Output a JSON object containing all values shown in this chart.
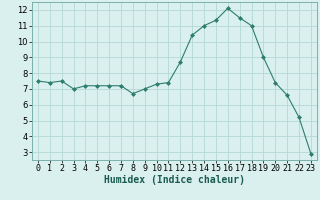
{
  "x": [
    0,
    1,
    2,
    3,
    4,
    5,
    6,
    7,
    8,
    9,
    10,
    11,
    12,
    13,
    14,
    15,
    16,
    17,
    18,
    19,
    20,
    21,
    22,
    23
  ],
  "y": [
    7.5,
    7.4,
    7.5,
    7.0,
    7.2,
    7.2,
    7.2,
    7.2,
    6.7,
    7.0,
    7.3,
    7.4,
    8.7,
    10.4,
    11.0,
    11.35,
    12.1,
    11.5,
    11.0,
    9.0,
    7.4,
    6.6,
    5.2,
    2.9
  ],
  "line_color": "#2e7d6e",
  "marker": "D",
  "marker_size": 2.0,
  "bg_color": "#d9f0ee",
  "grid_color": "#b5d9d5",
  "xlabel": "Humidex (Indice chaleur)",
  "xlabel_fontsize": 7,
  "tick_fontsize": 6,
  "xlim": [
    -0.5,
    23.5
  ],
  "ylim": [
    2.5,
    12.5
  ],
  "yticks": [
    3,
    4,
    5,
    6,
    7,
    8,
    9,
    10,
    11,
    12
  ],
  "xticks": [
    0,
    1,
    2,
    3,
    4,
    5,
    6,
    7,
    8,
    9,
    10,
    11,
    12,
    13,
    14,
    15,
    16,
    17,
    18,
    19,
    20,
    21,
    22,
    23
  ]
}
